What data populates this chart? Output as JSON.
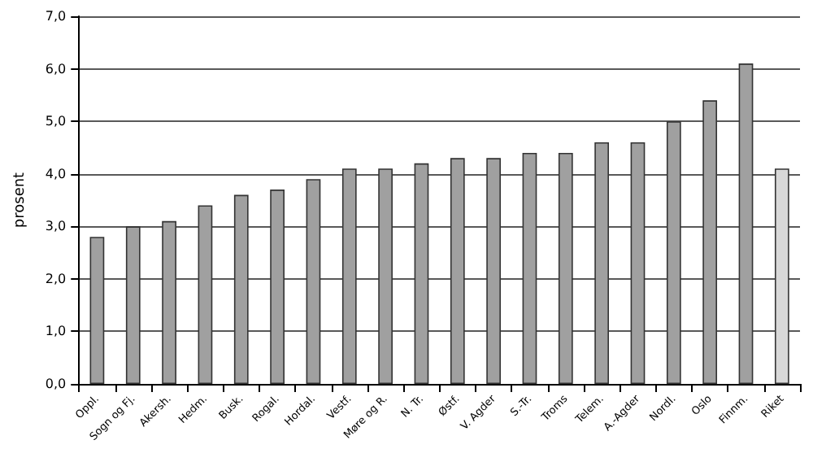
{
  "chart_data": {
    "type": "bar",
    "ylabel": "prosent",
    "categories": [
      "Oppl.",
      "Sogn og Fj.",
      "Akersh.",
      "Hedm.",
      "Busk.",
      "Rogal.",
      "Hordal.",
      "Vestf.",
      "Møre og R.",
      "N. Tr.",
      "Østf.",
      "V. Agder",
      "S.-Tr.",
      "Troms",
      "Telem.",
      "A.-Agder",
      "Nordl.",
      "Oslo",
      "Finnm.",
      "Riket"
    ],
    "values": [
      2.8,
      3.0,
      3.1,
      3.4,
      3.6,
      3.7,
      3.9,
      4.1,
      4.1,
      4.2,
      4.3,
      4.3,
      4.4,
      4.4,
      4.6,
      4.6,
      5.0,
      5.4,
      6.1,
      4.1
    ],
    "colors": [
      "#a0a0a0",
      "#a0a0a0",
      "#a0a0a0",
      "#a0a0a0",
      "#a0a0a0",
      "#a0a0a0",
      "#a0a0a0",
      "#a0a0a0",
      "#a0a0a0",
      "#a0a0a0",
      "#a0a0a0",
      "#a0a0a0",
      "#a0a0a0",
      "#a0a0a0",
      "#a0a0a0",
      "#a0a0a0",
      "#a0a0a0",
      "#a0a0a0",
      "#a0a0a0",
      "#d8d8d8"
    ],
    "ylim": [
      0,
      7
    ],
    "yticks": [
      {
        "value": 0,
        "label": "0,0"
      },
      {
        "value": 1,
        "label": "1,0"
      },
      {
        "value": 2,
        "label": "2,0"
      },
      {
        "value": 3,
        "label": "3,0"
      },
      {
        "value": 4,
        "label": "4,0"
      },
      {
        "value": 5,
        "label": "5,0"
      },
      {
        "value": 6,
        "label": "6,0"
      },
      {
        "value": 7,
        "label": "7,0"
      }
    ],
    "grid": "y"
  }
}
